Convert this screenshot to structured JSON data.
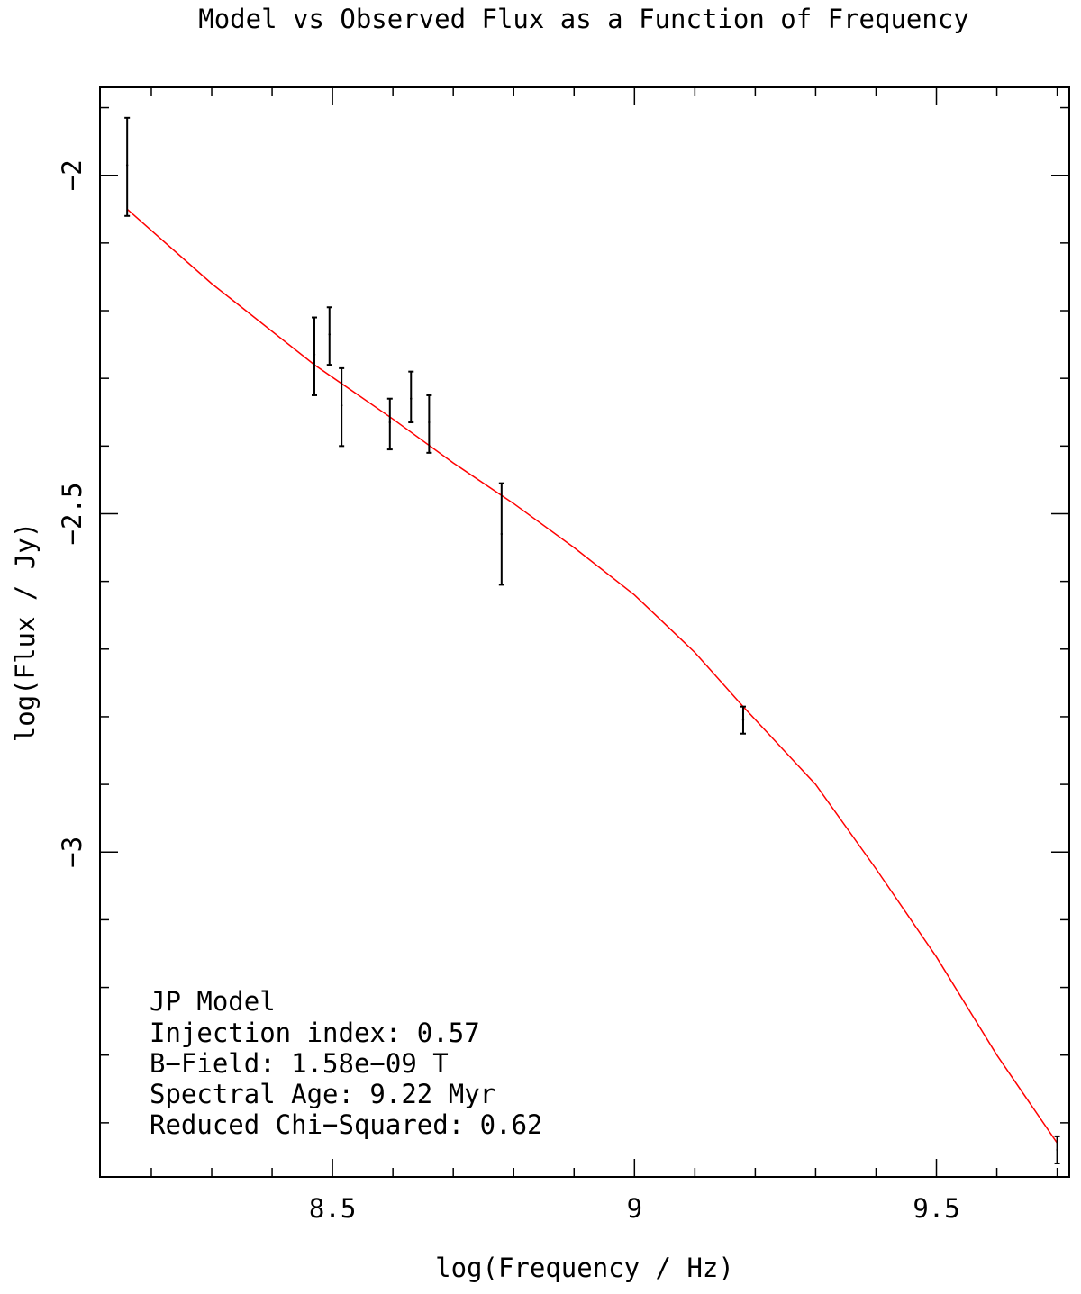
{
  "chart_data": {
    "type": "scatter",
    "title": "Model vs Observed Flux as a Function of Frequency",
    "xlabel": "log(Frequency / Hz)",
    "ylabel": "log(Flux / Jy)",
    "xlim": [
      8.115,
      9.72
    ],
    "ylim": [
      -3.48,
      -1.87
    ],
    "x_ticks": [
      8.5,
      9,
      9.5
    ],
    "x_tick_labels": [
      "8.5",
      "9",
      "9.5"
    ],
    "y_ticks": [
      -2,
      -2.5,
      -3
    ],
    "y_tick_labels": [
      "−2",
      "−2.5",
      "−3"
    ],
    "grid": false,
    "observed": [
      {
        "x": 8.16,
        "y": -1.985,
        "yerr_low": 0.075,
        "yerr_high": 0.07
      },
      {
        "x": 8.47,
        "y": -2.265,
        "yerr_low": 0.06,
        "yerr_high": 0.055
      },
      {
        "x": 8.495,
        "y": -2.235,
        "yerr_low": 0.045,
        "yerr_high": 0.04
      },
      {
        "x": 8.515,
        "y": -2.34,
        "yerr_low": 0.06,
        "yerr_high": 0.055
      },
      {
        "x": 8.595,
        "y": -2.365,
        "yerr_low": 0.04,
        "yerr_high": 0.035
      },
      {
        "x": 8.63,
        "y": -2.33,
        "yerr_low": 0.035,
        "yerr_high": 0.04
      },
      {
        "x": 8.66,
        "y": -2.365,
        "yerr_low": 0.045,
        "yerr_high": 0.04
      },
      {
        "x": 8.78,
        "y": -2.53,
        "yerr_low": 0.075,
        "yerr_high": 0.075
      },
      {
        "x": 9.18,
        "y": -2.805,
        "yerr_low": 0.02,
        "yerr_high": 0.02
      },
      {
        "x": 9.7,
        "y": -3.44,
        "yerr_low": 0.02,
        "yerr_high": 0.02
      }
    ],
    "model": {
      "color": "#ff0000",
      "x": [
        8.16,
        8.3,
        8.47,
        8.6,
        8.7,
        8.8,
        8.9,
        9.0,
        9.1,
        9.18,
        9.3,
        9.4,
        9.5,
        9.6,
        9.7
      ],
      "y": [
        -2.05,
        -2.16,
        -2.28,
        -2.36,
        -2.425,
        -2.485,
        -2.55,
        -2.62,
        -2.705,
        -2.785,
        -2.9,
        -3.025,
        -3.155,
        -3.3,
        -3.43
      ]
    },
    "annotations": [
      "JP Model",
      "Injection index: 0.57",
      "B−Field: 1.58e−09 T",
      "Spectral Age: 9.22 Myr",
      "Reduced Chi−Squared: 0.62"
    ]
  }
}
